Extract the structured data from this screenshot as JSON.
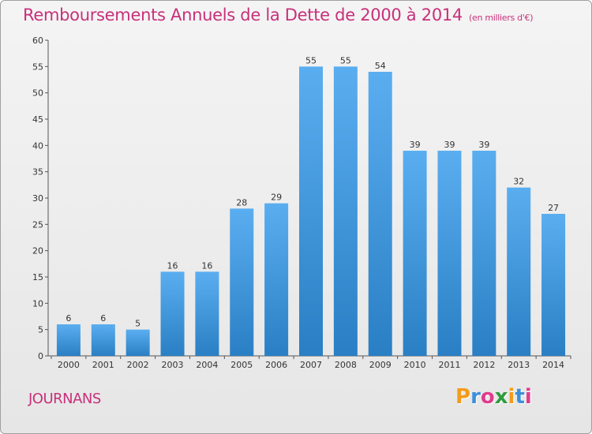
{
  "header": {
    "title": "Remboursements Annuels de la Dette de 2000 à 2014",
    "unit": "(en milliers d'€)"
  },
  "footer": {
    "commune": "JOURNANS",
    "logo_letters": [
      "P",
      "r",
      "o",
      "x",
      "i",
      "t",
      "i"
    ],
    "logo_colors": [
      "#f39c1a",
      "#3c8fd8",
      "#e23a8c",
      "#2e9b3e",
      "#f39c1a",
      "#3c8fd8",
      "#e23a8c"
    ]
  },
  "chart_data": {
    "type": "bar",
    "title": "Remboursements Annuels de la Dette de 2000 à 2014",
    "xlabel": "",
    "ylabel": "",
    "categories": [
      "2000",
      "2001",
      "2002",
      "2003",
      "2004",
      "2005",
      "2006",
      "2007",
      "2008",
      "2009",
      "2010",
      "2011",
      "2012",
      "2013",
      "2014"
    ],
    "values": [
      6,
      6,
      5,
      16,
      16,
      28,
      29,
      55,
      55,
      54,
      39,
      39,
      39,
      32,
      27
    ],
    "ylim": [
      0,
      60
    ],
    "yticks": [
      0,
      5,
      10,
      15,
      20,
      25,
      30,
      35,
      40,
      45,
      50,
      55,
      60
    ],
    "grid": false,
    "bar_color_top": "#5aaef0",
    "bar_color_bottom": "#2a7fc4"
  }
}
